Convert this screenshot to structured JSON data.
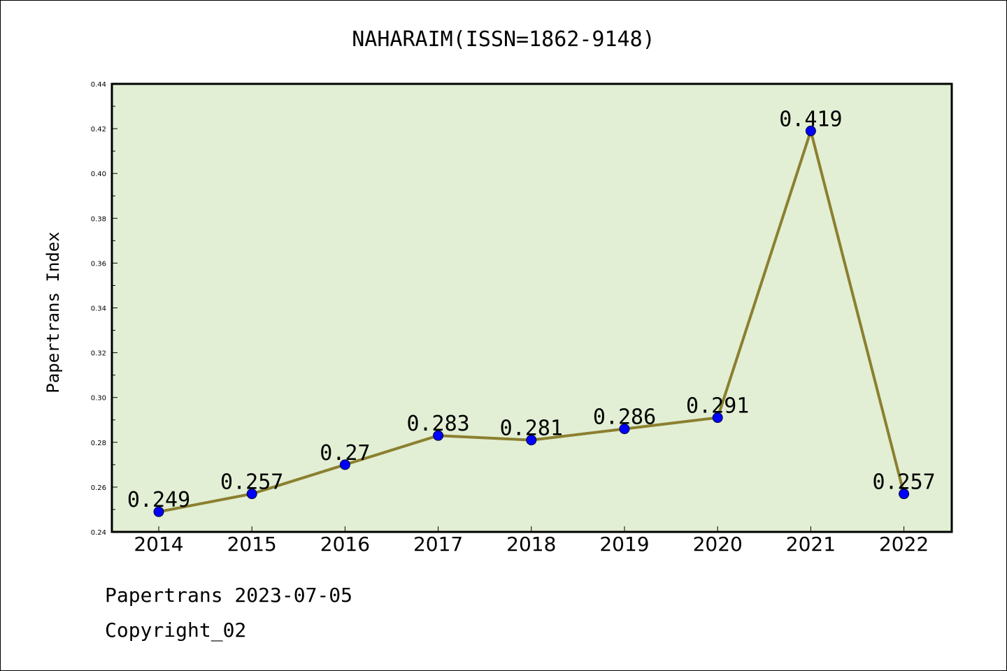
{
  "chart_data": {
    "type": "line",
    "title": "NAHARAIM(ISSN=1862-9148)",
    "xlabel": "",
    "ylabel": "Papertrans Index",
    "categories": [
      "2014",
      "2015",
      "2016",
      "2017",
      "2018",
      "2019",
      "2020",
      "2021",
      "2022"
    ],
    "series": [
      {
        "values": [
          0.249,
          0.257,
          0.27,
          0.283,
          0.281,
          0.286,
          0.291,
          0.419,
          0.257
        ],
        "data_labels": [
          "0.249",
          "0.257",
          "0.27",
          "0.283",
          "0.281",
          "0.286",
          "0.291",
          "0.419",
          "0.257"
        ]
      }
    ],
    "ylim": [
      0.24,
      0.44
    ],
    "yticks": [
      "0.24",
      "0.26",
      "0.28",
      "0.30",
      "0.32",
      "0.34",
      "0.36",
      "0.38",
      "0.40",
      "0.42",
      "0.44"
    ],
    "grid": false,
    "colors": {
      "plot_background": "#e2efd4",
      "line": "#8b8030",
      "marker": "#0000ff"
    }
  },
  "footer": {
    "date_line": "Papertrans 2023-07-05",
    "copyright_line": "Copyright_02"
  }
}
